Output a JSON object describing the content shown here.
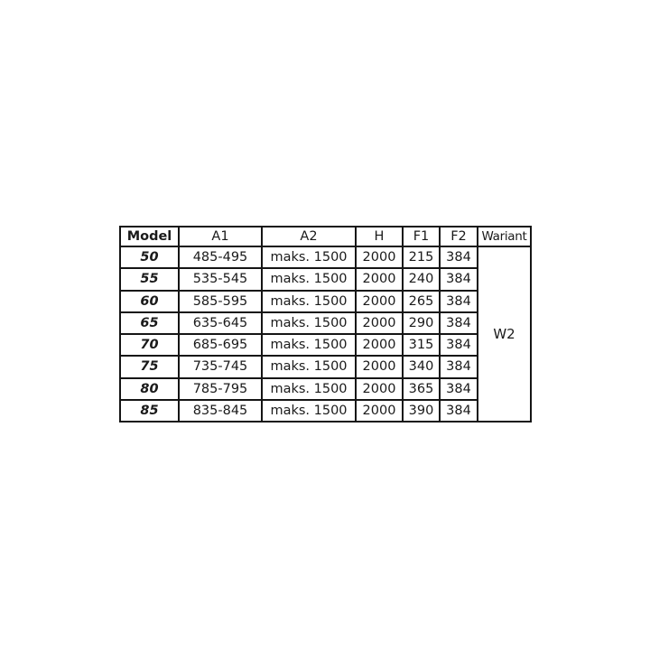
{
  "table": {
    "headers": [
      "Model",
      "A1",
      "A2",
      "H",
      "F1",
      "F2",
      "Wariant"
    ],
    "rows": [
      {
        "model": "50",
        "a1": "485-495",
        "a2": "maks. 1500",
        "h": "2000",
        "f1": "215",
        "f2": "384"
      },
      {
        "model": "55",
        "a1": "535-545",
        "a2": "maks. 1500",
        "h": "2000",
        "f1": "240",
        "f2": "384"
      },
      {
        "model": "60",
        "a1": "585-595",
        "a2": "maks. 1500",
        "h": "2000",
        "f1": "265",
        "f2": "384"
      },
      {
        "model": "65",
        "a1": "635-645",
        "a2": "maks. 1500",
        "h": "2000",
        "f1": "290",
        "f2": "384"
      },
      {
        "model": "70",
        "a1": "685-695",
        "a2": "maks. 1500",
        "h": "2000",
        "f1": "315",
        "f2": "384"
      },
      {
        "model": "75",
        "a1": "735-745",
        "a2": "maks. 1500",
        "h": "2000",
        "f1": "340",
        "f2": "384"
      },
      {
        "model": "80",
        "a1": "785-795",
        "a2": "maks. 1500",
        "h": "2000",
        "f1": "365",
        "f2": "384"
      },
      {
        "model": "85",
        "a1": "835-845",
        "a2": "maks. 1500",
        "h": "2000",
        "f1": "390",
        "f2": "384"
      }
    ],
    "variant": "W2"
  }
}
